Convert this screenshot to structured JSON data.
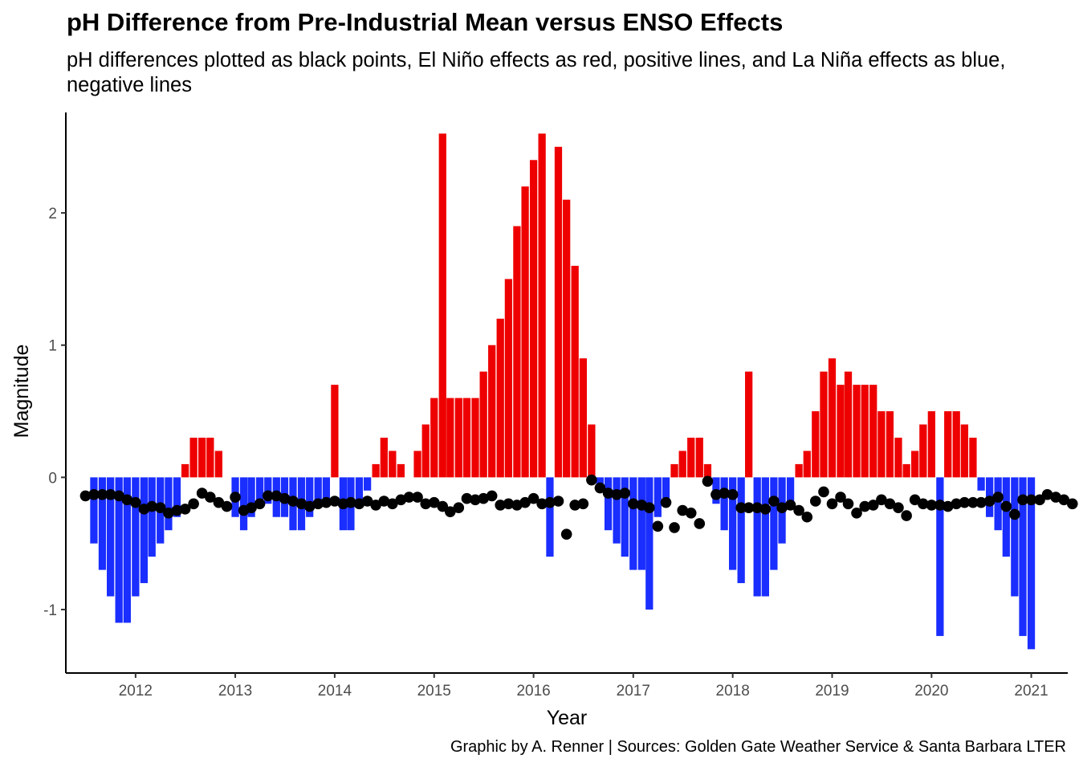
{
  "chart_data": {
    "type": "bar",
    "title": "pH Difference from Pre-Industrial Mean versus ENSO Effects",
    "subtitle": "pH differences plotted as black points, El Niño effects as red, positive lines, and La Niña effects as blue, negative lines",
    "caption": "Graphic by A. Renner | Sources: Golden Gate Weather Service & Santa Barbara LTER",
    "xlabel": "Year",
    "ylabel": "Magnitude",
    "xlim": [
      "2011-04-20",
      "2021-05-15"
    ],
    "ylim": [
      -1.48,
      2.76
    ],
    "x_ticks": [
      2012,
      2013,
      2014,
      2015,
      2016,
      2017,
      2018,
      2019,
      2020,
      2021
    ],
    "y_ticks": [
      -1,
      0,
      1,
      2
    ],
    "grid": false,
    "legend": "none",
    "colors": {
      "el_nino": "#ee0000",
      "la_nina": "#1a2eff",
      "ph": "#000000"
    },
    "enso_series": {
      "name": "ENSO effect",
      "start": "2011-08",
      "values": [
        -0.5,
        -0.7,
        -0.9,
        -1.1,
        -1.1,
        -0.9,
        -0.8,
        -0.6,
        -0.5,
        -0.4,
        -0.3,
        0.1,
        0.3,
        0.3,
        0.3,
        0.2,
        -0.0,
        -0.3,
        -0.4,
        -0.3,
        -0.2,
        -0.2,
        -0.3,
        -0.3,
        -0.4,
        -0.4,
        -0.3,
        -0.2,
        -0.2,
        0.7,
        -0.4,
        -0.4,
        -0.2,
        -0.1,
        0.1,
        0.3,
        0.2,
        0.1,
        0.0,
        0.2,
        0.4,
        0.6,
        2.6,
        0.6,
        0.6,
        0.6,
        0.6,
        0.8,
        1.0,
        1.2,
        1.5,
        1.9,
        2.2,
        2.4,
        2.6,
        -0.6,
        2.5,
        2.1,
        1.6,
        0.9,
        0.4,
        -0.1,
        -0.4,
        -0.5,
        -0.6,
        -0.7,
        -0.7,
        -1.0,
        -0.3,
        -0.2,
        0.1,
        0.2,
        0.3,
        0.3,
        0.1,
        -0.2,
        -0.4,
        -0.7,
        -0.8,
        0.8,
        -0.9,
        -0.9,
        -0.7,
        -0.5,
        -0.2,
        0.1,
        0.2,
        0.5,
        0.8,
        0.9,
        0.7,
        0.8,
        0.7,
        0.7,
        0.7,
        0.5,
        0.5,
        0.3,
        0.1,
        0.2,
        0.4,
        0.5,
        -1.2,
        0.5,
        0.5,
        0.4,
        0.3,
        -0.1,
        -0.3,
        -0.4,
        -0.6,
        -0.9,
        -1.2,
        -1.3
      ]
    },
    "ph_series": {
      "name": "pH difference",
      "start": "2011-07",
      "values": [
        -0.14,
        -0.13,
        -0.13,
        -0.13,
        -0.14,
        -0.17,
        -0.19,
        -0.24,
        -0.22,
        -0.23,
        -0.27,
        -0.25,
        -0.24,
        -0.2,
        -0.12,
        -0.15,
        -0.19,
        -0.22,
        -0.15,
        -0.25,
        -0.23,
        -0.2,
        -0.14,
        -0.14,
        -0.16,
        -0.18,
        -0.2,
        -0.22,
        -0.2,
        -0.19,
        -0.18,
        -0.2,
        -0.19,
        -0.2,
        -0.18,
        -0.21,
        -0.18,
        -0.2,
        -0.17,
        -0.15,
        -0.15,
        -0.2,
        -0.19,
        -0.22,
        -0.26,
        -0.23,
        -0.16,
        -0.17,
        -0.16,
        -0.14,
        -0.21,
        -0.2,
        -0.21,
        -0.19,
        -0.16,
        -0.2,
        -0.19,
        -0.18,
        -0.43,
        -0.21,
        -0.2,
        -0.02,
        -0.08,
        -0.12,
        -0.13,
        -0.12,
        -0.2,
        -0.21,
        -0.23,
        -0.37,
        -0.19,
        -0.38,
        -0.25,
        -0.27,
        -0.35,
        -0.03,
        -0.13,
        -0.12,
        -0.13,
        -0.23,
        -0.23,
        -0.23,
        -0.24,
        -0.18,
        -0.23,
        -0.21,
        -0.25,
        -0.3,
        -0.18,
        -0.11,
        -0.2,
        -0.15,
        -0.2,
        -0.27,
        -0.22,
        -0.21,
        -0.17,
        -0.2,
        -0.23,
        -0.29,
        -0.17,
        -0.2,
        -0.21,
        -0.21,
        -0.22,
        -0.2,
        -0.19,
        -0.19,
        -0.19,
        -0.18,
        -0.15,
        -0.22,
        -0.28,
        -0.17,
        -0.17,
        -0.17,
        -0.13,
        -0.15,
        -0.17,
        -0.2
      ]
    }
  }
}
